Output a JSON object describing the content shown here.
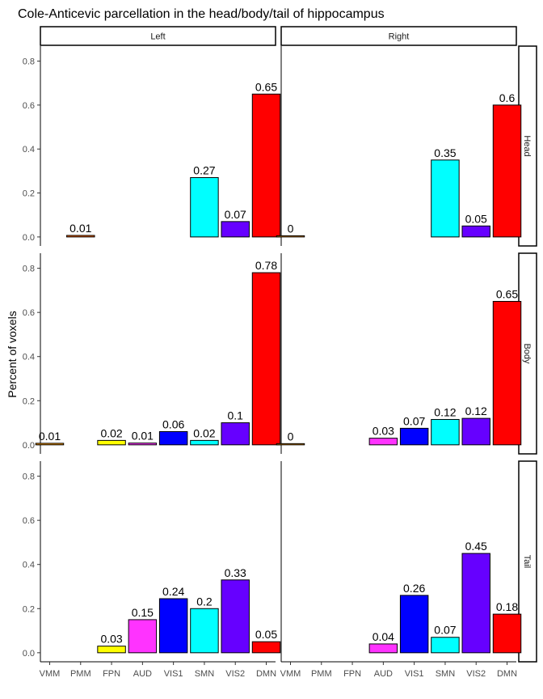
{
  "chart_data": {
    "type": "bar",
    "title": "Cole-Anticevic parcellation in the head/body/tail of hippocampus",
    "ylabel": "Percent of voxels",
    "xlabel": "",
    "ylim": [
      0,
      0.85
    ],
    "yticks": [
      "0.0",
      "0.2",
      "0.4",
      "0.6",
      "0.8"
    ],
    "categories": [
      "VMM",
      "PMM",
      "FPN",
      "AUD",
      "VIS1",
      "SMN",
      "VIS2",
      "DMN"
    ],
    "category_colors": {
      "VMM": "#FF9900",
      "PMM": "#FF6600",
      "FPN": "#FFFF00",
      "AUD": "#FF33FF",
      "VIS1": "#0000FF",
      "SMN": "#00FFFF",
      "VIS2": "#6600FF",
      "DMN": "#FF0000"
    },
    "columns": [
      "Left",
      "Right"
    ],
    "rows": [
      "Head",
      "Body",
      "Tail"
    ],
    "grid": false,
    "panels": [
      {
        "row": "Head",
        "column": "Left",
        "bars": [
          {
            "category": "PMM",
            "value": 0.007,
            "label": "0.01"
          },
          {
            "category": "SMN",
            "value": 0.27,
            "label": "0.27"
          },
          {
            "category": "VIS2",
            "value": 0.07,
            "label": "0.07"
          },
          {
            "category": "DMN",
            "value": 0.65,
            "label": "0.65"
          }
        ]
      },
      {
        "row": "Head",
        "column": "Right",
        "bars": [
          {
            "category": "VMM",
            "value": 0.003,
            "label": "0"
          },
          {
            "category": "SMN",
            "value": 0.35,
            "label": "0.35"
          },
          {
            "category": "VIS2",
            "value": 0.05,
            "label": "0.05"
          },
          {
            "category": "DMN",
            "value": 0.6,
            "label": "0.6"
          }
        ]
      },
      {
        "row": "Body",
        "column": "Left",
        "bars": [
          {
            "category": "VMM",
            "value": 0.007,
            "label": "0.01"
          },
          {
            "category": "FPN",
            "value": 0.02,
            "label": "0.02"
          },
          {
            "category": "AUD",
            "value": 0.008,
            "label": "0.01"
          },
          {
            "category": "VIS1",
            "value": 0.06,
            "label": "0.06"
          },
          {
            "category": "SMN",
            "value": 0.02,
            "label": "0.02"
          },
          {
            "category": "VIS2",
            "value": 0.1,
            "label": "0.1"
          },
          {
            "category": "DMN",
            "value": 0.78,
            "label": "0.78"
          }
        ]
      },
      {
        "row": "Body",
        "column": "Right",
        "bars": [
          {
            "category": "VMM",
            "value": 0.003,
            "label": "0"
          },
          {
            "category": "AUD",
            "value": 0.03,
            "label": "0.03"
          },
          {
            "category": "VIS1",
            "value": 0.075,
            "label": "0.07"
          },
          {
            "category": "SMN",
            "value": 0.115,
            "label": "0.12"
          },
          {
            "category": "VIS2",
            "value": 0.12,
            "label": "0.12"
          },
          {
            "category": "DMN",
            "value": 0.65,
            "label": "0.65"
          }
        ]
      },
      {
        "row": "Tail",
        "column": "Left",
        "bars": [
          {
            "category": "FPN",
            "value": 0.03,
            "label": "0.03"
          },
          {
            "category": "AUD",
            "value": 0.15,
            "label": "0.15"
          },
          {
            "category": "VIS1",
            "value": 0.245,
            "label": "0.24"
          },
          {
            "category": "SMN",
            "value": 0.2,
            "label": "0.2"
          },
          {
            "category": "VIS2",
            "value": 0.33,
            "label": "0.33"
          },
          {
            "category": "DMN",
            "value": 0.05,
            "label": "0.05"
          }
        ]
      },
      {
        "row": "Tail",
        "column": "Right",
        "bars": [
          {
            "category": "AUD",
            "value": 0.04,
            "label": "0.04"
          },
          {
            "category": "VIS1",
            "value": 0.26,
            "label": "0.26"
          },
          {
            "category": "SMN",
            "value": 0.07,
            "label": "0.07"
          },
          {
            "category": "VIS2",
            "value": 0.45,
            "label": "0.45"
          },
          {
            "category": "DMN",
            "value": 0.175,
            "label": "0.18"
          }
        ]
      }
    ]
  }
}
